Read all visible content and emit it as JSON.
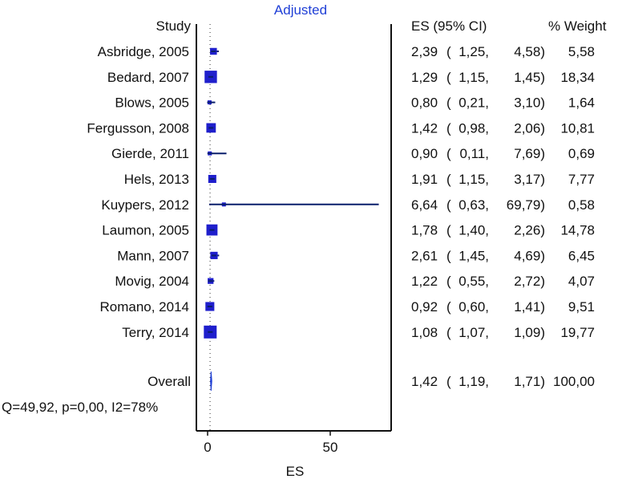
{
  "chart_data": {
    "type": "forest",
    "title": "Adjusted",
    "xlabel": "ES",
    "xlim": [
      -3,
      72
    ],
    "xticks": [
      0,
      50
    ],
    "header": {
      "study": "Study",
      "es_ci": "ES (95% CI)",
      "weight": "% Weight"
    },
    "studies": [
      {
        "study": "Asbridge, 2005",
        "es": 2.39,
        "lo": 1.25,
        "hi": 4.58,
        "weight": 5.58,
        "es_text": "2,39",
        "lo_text": "1,25",
        "hi_text": "4,58",
        "weight_text": "5,58"
      },
      {
        "study": "Bedard, 2007",
        "es": 1.29,
        "lo": 1.15,
        "hi": 1.45,
        "weight": 18.34,
        "es_text": "1,29",
        "lo_text": "1,15",
        "hi_text": "1,45",
        "weight_text": "18,34"
      },
      {
        "study": "Blows, 2005",
        "es": 0.8,
        "lo": 0.21,
        "hi": 3.1,
        "weight": 1.64,
        "es_text": "0,80",
        "lo_text": "0,21",
        "hi_text": "3,10",
        "weight_text": "1,64"
      },
      {
        "study": "Fergusson, 2008",
        "es": 1.42,
        "lo": 0.98,
        "hi": 2.06,
        "weight": 10.81,
        "es_text": "1,42",
        "lo_text": "0,98",
        "hi_text": "2,06",
        "weight_text": "10,81"
      },
      {
        "study": "Gierde, 2011",
        "es": 0.9,
        "lo": 0.11,
        "hi": 7.69,
        "weight": 0.69,
        "es_text": "0,90",
        "lo_text": "0,11",
        "hi_text": "7,69",
        "weight_text": "0,69"
      },
      {
        "study": "Hels, 2013",
        "es": 1.91,
        "lo": 1.15,
        "hi": 3.17,
        "weight": 7.77,
        "es_text": "1,91",
        "lo_text": "1,15",
        "hi_text": "3,17",
        "weight_text": "7,77"
      },
      {
        "study": "Kuypers, 2012",
        "es": 6.64,
        "lo": 0.63,
        "hi": 69.79,
        "weight": 0.58,
        "es_text": "6,64",
        "lo_text": "0,63",
        "hi_text": "69,79",
        "weight_text": "0,58"
      },
      {
        "study": "Laumon, 2005",
        "es": 1.78,
        "lo": 1.4,
        "hi": 2.26,
        "weight": 14.78,
        "es_text": "1,78",
        "lo_text": "1,40",
        "hi_text": "2,26",
        "weight_text": "14,78"
      },
      {
        "study": "Mann, 2007",
        "es": 2.61,
        "lo": 1.45,
        "hi": 4.69,
        "weight": 6.45,
        "es_text": "2,61",
        "lo_text": "1,45",
        "hi_text": "4,69",
        "weight_text": "6,45"
      },
      {
        "study": "Movig, 2004",
        "es": 1.22,
        "lo": 0.55,
        "hi": 2.72,
        "weight": 4.07,
        "es_text": "1,22",
        "lo_text": "0,55",
        "hi_text": "2,72",
        "weight_text": "4,07"
      },
      {
        "study": "Romano, 2014",
        "es": 0.92,
        "lo": 0.6,
        "hi": 1.41,
        "weight": 9.51,
        "es_text": "0,92",
        "lo_text": "0,60",
        "hi_text": "1,41",
        "weight_text": "9,51"
      },
      {
        "study": "Terry, 2014",
        "es": 1.08,
        "lo": 1.07,
        "hi": 1.09,
        "weight": 19.77,
        "es_text": "1,08",
        "lo_text": "1,07",
        "hi_text": "1,09",
        "weight_text": "19,77"
      }
    ],
    "overall": {
      "label": "Overall",
      "es": 1.42,
      "lo": 1.19,
      "hi": 1.71,
      "weight": 100.0,
      "es_text": "1,42",
      "lo_text": "1,19",
      "hi_text": "1,71",
      "weight_text": "100,00"
    },
    "heterogeneity": "Q=49,92, p=0,00, I2=78%",
    "colors": {
      "marker": "#1f1fcc",
      "ci_line": "#0a1f6b",
      "overall": "#1f3fd6",
      "title": "#1f3fd6",
      "axis": "#111111"
    }
  }
}
